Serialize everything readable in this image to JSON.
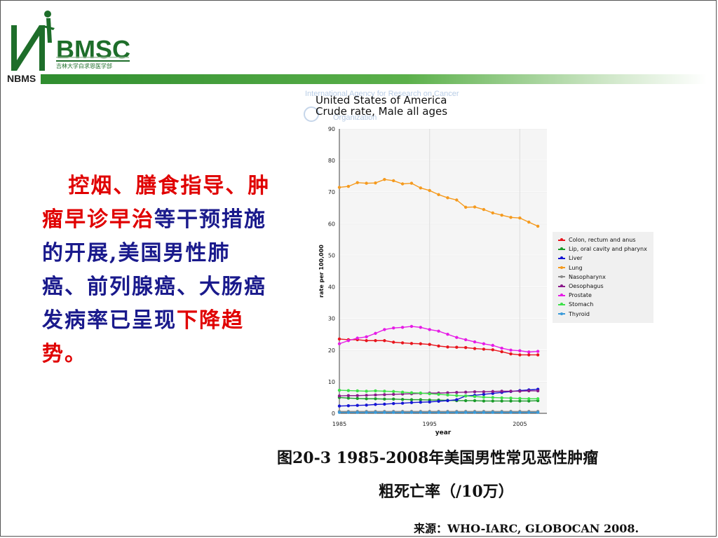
{
  "logo": {
    "brand": "BMSC",
    "cn": "吉林大学白求恩医学部",
    "short": "NBMS"
  },
  "left_text": {
    "part1": "控烟、膳食指导、肿瘤早诊早治",
    "part2": "等干预措施的开展,美国男性肺癌、前列腺癌、大肠癌发病率已呈现",
    "part3": "下降趋",
    "part4": "势。"
  },
  "caption": {
    "line1": "图20-3 1985-2008年美国男性常见恶性肿瘤",
    "line2": "粗死亡率（/10万）",
    "source": "来源：WHO-IARC, GLOBOCAN 2008."
  },
  "chart_data": {
    "type": "line",
    "title": "United States of America",
    "subtitle": "Crude rate, Male all ages",
    "watermark": "International Agency for Research on Cancer",
    "watermark2": "Organization",
    "xlabel": "year",
    "ylabel": "rate per 100,000",
    "xlim": [
      1985,
      2008
    ],
    "ylim": [
      0,
      90
    ],
    "xticks": [
      1985,
      1995,
      2005
    ],
    "yticks": [
      0,
      10,
      20,
      30,
      40,
      50,
      60,
      70,
      80,
      90
    ],
    "grid": true,
    "legend_position": "right",
    "x": [
      1985,
      1986,
      1987,
      1988,
      1989,
      1990,
      1991,
      1992,
      1993,
      1994,
      1995,
      1996,
      1997,
      1998,
      1999,
      2000,
      2001,
      2002,
      2003,
      2004,
      2005,
      2006,
      2007
    ],
    "series": [
      {
        "name": "Colon, rectum and anus",
        "color": "#e8141c",
        "values": [
          23.5,
          23.3,
          23.3,
          23.0,
          23.0,
          23.0,
          22.5,
          22.3,
          22.1,
          22.0,
          21.8,
          21.3,
          21.0,
          20.9,
          20.8,
          20.5,
          20.3,
          20.1,
          19.5,
          18.8,
          18.5,
          18.5,
          18.5
        ]
      },
      {
        "name": "Lip, oral cavity and pharynx",
        "color": "#1a9b2a",
        "values": [
          5.0,
          4.8,
          4.7,
          4.6,
          4.6,
          4.5,
          4.5,
          4.4,
          4.3,
          4.3,
          4.2,
          4.2,
          4.1,
          4.0,
          4.0,
          4.0,
          3.9,
          3.9,
          3.9,
          3.9,
          3.9,
          3.9,
          4.0
        ]
      },
      {
        "name": "Liver",
        "color": "#1414d4",
        "values": [
          2.3,
          2.4,
          2.5,
          2.6,
          2.8,
          2.9,
          3.1,
          3.2,
          3.4,
          3.5,
          3.6,
          3.8,
          4.0,
          4.3,
          5.5,
          5.7,
          6.0,
          6.3,
          6.6,
          6.9,
          7.2,
          7.4,
          7.6
        ]
      },
      {
        "name": "Lung",
        "color": "#f59a1e",
        "values": [
          71.5,
          71.8,
          73.0,
          72.8,
          72.9,
          74.0,
          73.6,
          72.6,
          72.8,
          71.3,
          70.5,
          69.2,
          68.2,
          67.5,
          65.2,
          65.3,
          64.5,
          63.4,
          62.7,
          62.0,
          61.8,
          60.5,
          59.2
        ]
      },
      {
        "name": "Nasopharynx",
        "color": "#8a8a8a",
        "values": [
          0.6,
          0.6,
          0.6,
          0.6,
          0.6,
          0.6,
          0.6,
          0.6,
          0.6,
          0.6,
          0.6,
          0.6,
          0.6,
          0.6,
          0.6,
          0.6,
          0.6,
          0.6,
          0.6,
          0.6,
          0.6,
          0.6,
          0.6
        ]
      },
      {
        "name": "Oesophagus",
        "color": "#8b1a8b",
        "values": [
          5.5,
          5.6,
          5.6,
          5.7,
          5.8,
          5.9,
          6.0,
          6.1,
          6.2,
          6.3,
          6.4,
          6.4,
          6.5,
          6.6,
          6.7,
          6.8,
          6.8,
          6.9,
          7.0,
          7.0,
          7.0,
          7.1,
          7.1
        ]
      },
      {
        "name": "Prostate",
        "color": "#e61ce6",
        "values": [
          22.0,
          23.0,
          23.8,
          24.2,
          25.3,
          26.5,
          27.0,
          27.2,
          27.5,
          27.2,
          26.5,
          26.0,
          25.0,
          24.0,
          23.3,
          22.6,
          22.0,
          21.5,
          20.6,
          20.0,
          19.8,
          19.4,
          19.6
        ]
      },
      {
        "name": "Stomach",
        "color": "#3ee04a",
        "values": [
          7.3,
          7.2,
          7.1,
          7.0,
          7.1,
          7.0,
          6.9,
          6.7,
          6.5,
          6.4,
          6.2,
          6.0,
          5.8,
          5.6,
          5.5,
          5.3,
          5.1,
          5.0,
          4.9,
          4.8,
          4.7,
          4.6,
          4.6
        ]
      },
      {
        "name": "Thyroid",
        "color": "#3a9ad9",
        "values": [
          0.3,
          0.3,
          0.3,
          0.3,
          0.3,
          0.3,
          0.3,
          0.3,
          0.3,
          0.3,
          0.3,
          0.3,
          0.3,
          0.3,
          0.3,
          0.3,
          0.3,
          0.3,
          0.3,
          0.3,
          0.3,
          0.3,
          0.3
        ]
      }
    ]
  },
  "colors": {
    "brand_green": "#1e6e2a",
    "text_blue": "#1a1a8c",
    "text_red": "#e00000"
  }
}
